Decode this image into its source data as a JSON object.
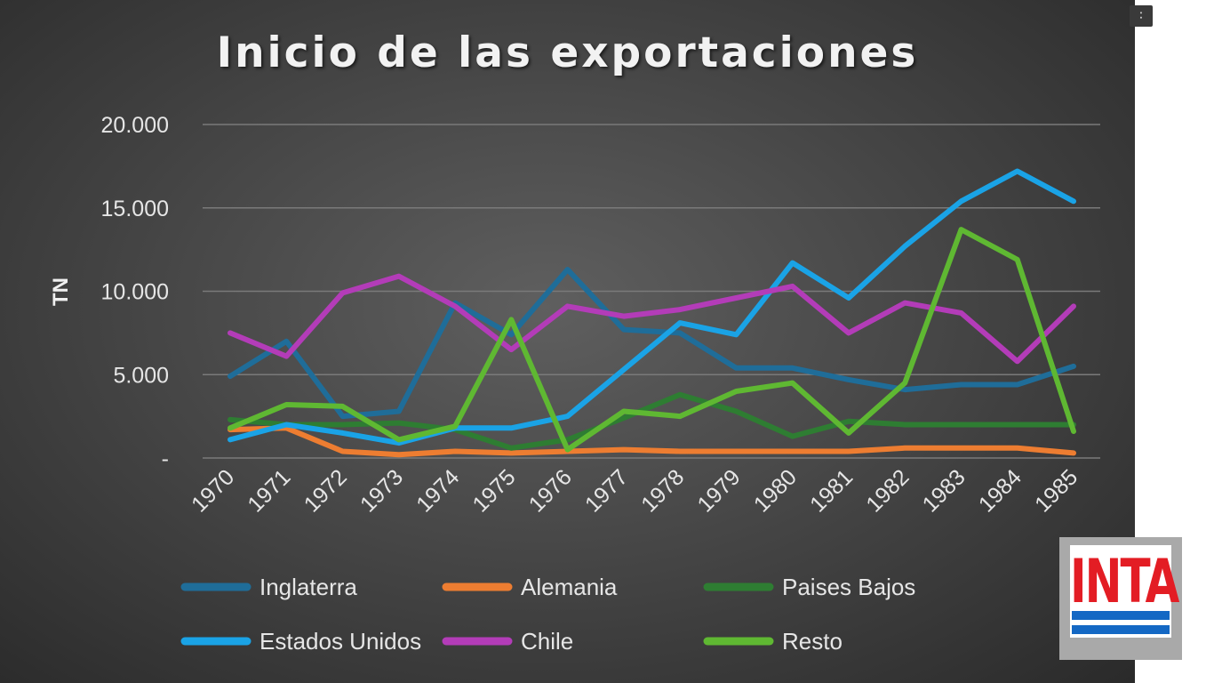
{
  "chart_data": {
    "type": "line",
    "title": "Inicio de las exportaciones",
    "ylabel": "TN",
    "xlabel": "",
    "ylim": [
      0,
      20000
    ],
    "yticks": [
      {
        "value": 0,
        "label": "-"
      },
      {
        "value": 5000,
        "label": "5.000"
      },
      {
        "value": 10000,
        "label": "10.000"
      },
      {
        "value": 15000,
        "label": "15.000"
      },
      {
        "value": 20000,
        "label": "20.000"
      }
    ],
    "grid": true,
    "legend_position": "bottom",
    "categories": [
      "1970",
      "1971",
      "1972",
      "1973",
      "1974",
      "1975",
      "1976",
      "1977",
      "1978",
      "1979",
      "1980",
      "1981",
      "1982",
      "1983",
      "1984",
      "1985"
    ],
    "series": [
      {
        "name": "Inglaterra",
        "color": "#1f6d99",
        "values": [
          4900,
          7000,
          2500,
          2800,
          9300,
          7400,
          11300,
          7700,
          7500,
          5400,
          5400,
          4700,
          4100,
          4400,
          4400,
          5500
        ]
      },
      {
        "name": "Alemania",
        "color": "#ed7d31",
        "values": [
          1700,
          1800,
          400,
          200,
          400,
          300,
          400,
          500,
          400,
          400,
          400,
          400,
          600,
          600,
          600,
          300
        ]
      },
      {
        "name": "Paises Bajos",
        "color": "#2e7d32",
        "values": [
          2300,
          2000,
          2000,
          2100,
          1700,
          600,
          1100,
          2400,
          3800,
          2800,
          1300,
          2200,
          2000,
          2000,
          2000,
          2000
        ]
      },
      {
        "name": "Estados Unidos",
        "color": "#1aa3e6",
        "values": [
          1100,
          2000,
          1500,
          900,
          1800,
          1800,
          2500,
          5300,
          8100,
          7400,
          11700,
          9600,
          12700,
          15400,
          17200,
          15400
        ]
      },
      {
        "name": "Chile",
        "color": "#b33cb8",
        "values": [
          7500,
          6100,
          9900,
          10900,
          9100,
          6500,
          9100,
          8500,
          8900,
          9600,
          10300,
          7500,
          9300,
          8700,
          5800,
          9100
        ]
      },
      {
        "name": "Resto",
        "color": "#5fb832",
        "values": [
          1800,
          3200,
          3100,
          1100,
          1900,
          8300,
          500,
          2800,
          2500,
          4000,
          4500,
          1500,
          4500,
          13700,
          11900,
          1600
        ]
      }
    ]
  },
  "logo": {
    "text": "INTA",
    "colors": {
      "text": "#e31d24",
      "stripes": "#1468c4"
    }
  },
  "close_icon": "collapse-icon"
}
